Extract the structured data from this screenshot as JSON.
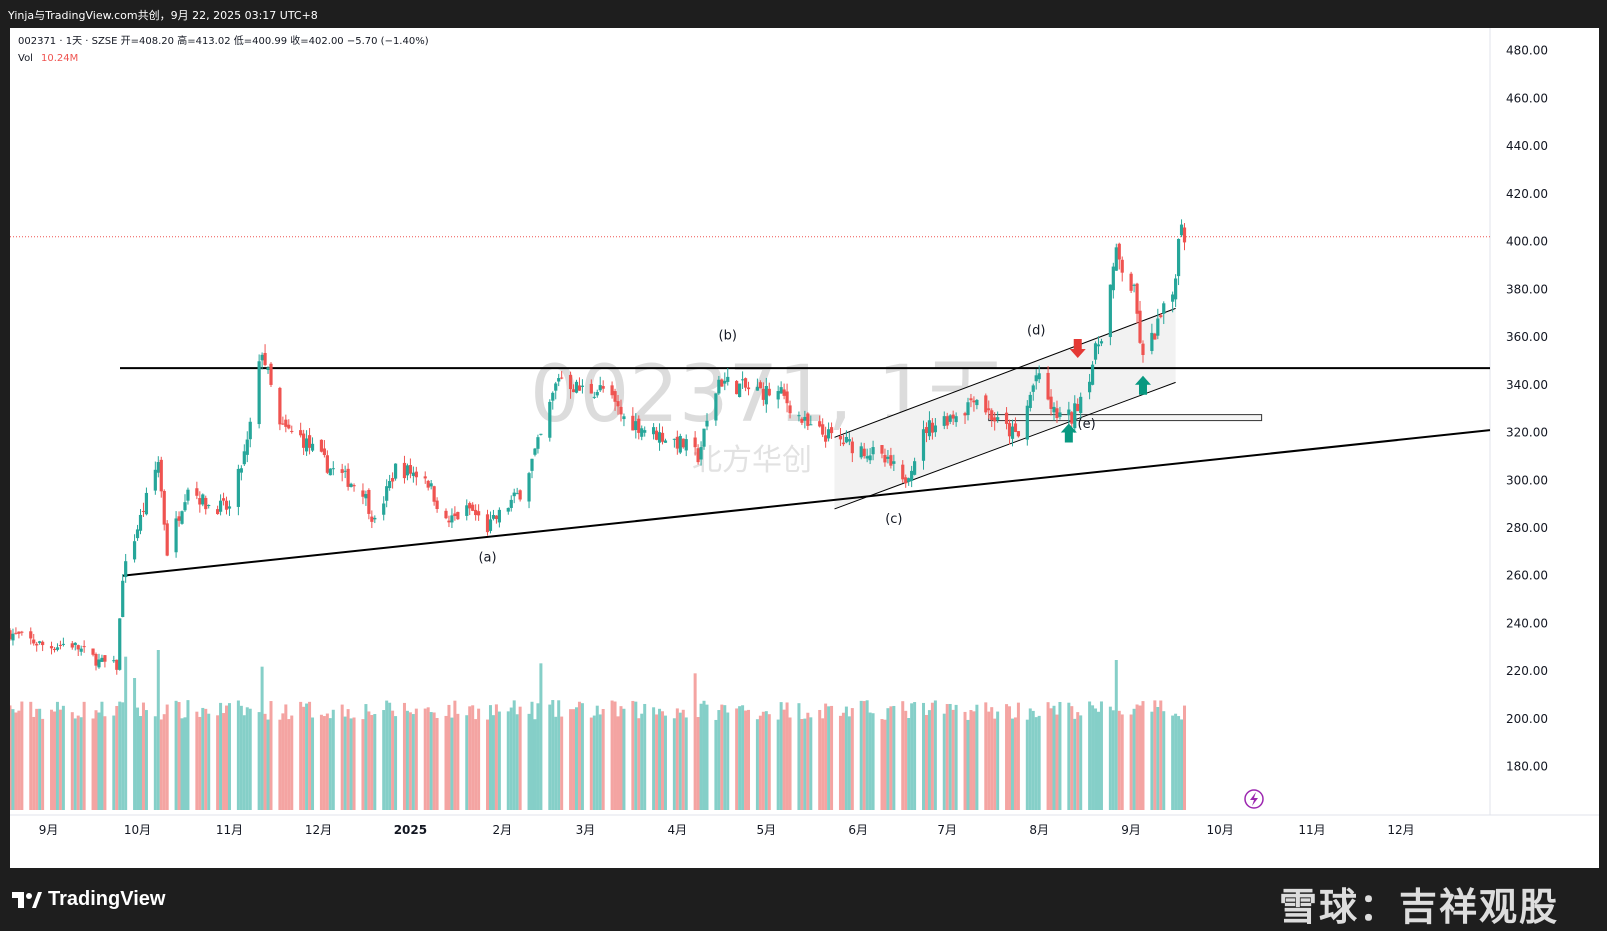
{
  "header": {
    "title_line": "Yinja与TradingView.com共创，9月 22, 2025 03:17 UTC+8"
  },
  "legend": {
    "symbol_line": "002371 · 1天 · SZSE  开=408.20  高=413.02  低=400.99  收=402.00  −5.70 (−1.40%)",
    "vol_label": "Vol",
    "vol_value": "10.24M"
  },
  "watermark": {
    "symbol": "002371, 1天",
    "name": "北方华创"
  },
  "footer": {
    "brand": "TradingView",
    "source_mark": "雪球：吉祥观股"
  },
  "colors": {
    "up": "#26a69a",
    "down": "#ef5350",
    "up_vol": "#85cfc8",
    "down_vol": "#f4a4a2",
    "line": "#000000",
    "price_line": "#ef5350",
    "frame": "#1e1e1e"
  },
  "chart_data": {
    "type": "candlestick",
    "price_axis": {
      "range": [
        156,
        488
      ],
      "ticks": [
        "480.00",
        "460.00",
        "440.00",
        "420.00",
        "400.00",
        "380.00",
        "360.00",
        "340.00",
        "320.00",
        "300.00",
        "280.00",
        "260.00",
        "240.00",
        "220.00",
        "200.00",
        "180.00"
      ]
    },
    "time_axis": {
      "range": [
        "2024-08-19",
        "2025-12-31"
      ],
      "labels": [
        {
          "text": "9月",
          "date": "2024-09-01"
        },
        {
          "text": "10月",
          "date": "2024-10-01"
        },
        {
          "text": "11月",
          "date": "2024-11-01"
        },
        {
          "text": "12月",
          "date": "2024-12-01"
        },
        {
          "text": "2025",
          "date": "2025-01-01"
        },
        {
          "text": "2月",
          "date": "2025-02-01"
        },
        {
          "text": "3月",
          "date": "2025-03-01"
        },
        {
          "text": "4月",
          "date": "2025-04-01"
        },
        {
          "text": "5月",
          "date": "2025-05-01"
        },
        {
          "text": "6月",
          "date": "2025-06-01"
        },
        {
          "text": "7月",
          "date": "2025-07-01"
        },
        {
          "text": "8月",
          "date": "2025-08-01"
        },
        {
          "text": "9月",
          "date": "2025-09-01"
        },
        {
          "text": "10月",
          "date": "2025-10-01"
        },
        {
          "text": "11月",
          "date": "2025-11-01"
        },
        {
          "text": "12月",
          "date": "2025-12-01"
        }
      ]
    },
    "last_price": 402.0,
    "horizontal_line": 347,
    "support_line": [
      {
        "date": "2024-09-26",
        "price": 260
      },
      {
        "date": "2025-12-31",
        "price": 321
      }
    ],
    "channel_upper": [
      {
        "date": "2025-05-24",
        "price": 318
      },
      {
        "date": "2025-09-16",
        "price": 372
      }
    ],
    "channel_lower": [
      {
        "date": "2025-05-24",
        "price": 288
      },
      {
        "date": "2025-09-16",
        "price": 341
      }
    ],
    "zone_rect": {
      "from": "2025-07-15",
      "to": "2025-10-15",
      "top": 327.5,
      "bottom": 325
    },
    "annotations": [
      {
        "text": "(a)",
        "date": "2025-01-27",
        "price": 266
      },
      {
        "text": "(b)",
        "date": "2025-04-18",
        "price": 359
      },
      {
        "text": "(c)",
        "date": "2025-06-13",
        "price": 282
      },
      {
        "text": "(d)",
        "date": "2025-07-31",
        "price": 361
      },
      {
        "text": "(e)",
        "date": "2025-08-17",
        "price": 322
      }
    ],
    "arrows": [
      {
        "dir": "down",
        "date": "2025-08-14",
        "price": 355
      },
      {
        "dir": "up",
        "date": "2025-08-11",
        "price": 320
      },
      {
        "dir": "up",
        "date": "2025-09-05",
        "price": 340
      }
    ],
    "anchors": [
      {
        "date": "2024-08-19",
        "close": 236
      },
      {
        "date": "2024-09-01",
        "close": 230
      },
      {
        "date": "2024-09-08",
        "close": 232
      },
      {
        "date": "2024-09-18",
        "close": 224
      },
      {
        "date": "2024-09-24",
        "close": 222
      },
      {
        "date": "2024-09-26",
        "close": 260
      },
      {
        "date": "2024-10-08",
        "close": 308
      },
      {
        "date": "2024-10-11",
        "close": 270
      },
      {
        "date": "2024-10-18",
        "close": 298
      },
      {
        "date": "2024-10-24",
        "close": 290
      },
      {
        "date": "2024-11-01",
        "close": 288
      },
      {
        "date": "2024-11-07",
        "close": 315
      },
      {
        "date": "2024-11-12",
        "close": 355
      },
      {
        "date": "2024-11-18",
        "close": 322
      },
      {
        "date": "2024-11-25",
        "close": 318
      },
      {
        "date": "2024-12-05",
        "close": 305
      },
      {
        "date": "2024-12-16",
        "close": 296
      },
      {
        "date": "2024-12-20",
        "close": 282
      },
      {
        "date": "2024-12-27",
        "close": 305
      },
      {
        "date": "2025-01-06",
        "close": 302
      },
      {
        "date": "2025-01-13",
        "close": 282
      },
      {
        "date": "2025-01-21",
        "close": 288
      },
      {
        "date": "2025-01-27",
        "close": 280
      },
      {
        "date": "2025-02-07",
        "close": 295
      },
      {
        "date": "2025-02-14",
        "close": 318
      },
      {
        "date": "2025-02-20",
        "close": 344
      },
      {
        "date": "2025-02-27",
        "close": 338
      },
      {
        "date": "2025-03-07",
        "close": 338
      },
      {
        "date": "2025-03-14",
        "close": 326
      },
      {
        "date": "2025-03-24",
        "close": 320
      },
      {
        "date": "2025-04-03",
        "close": 315
      },
      {
        "date": "2025-04-08",
        "close": 310
      },
      {
        "date": "2025-04-15",
        "close": 342
      },
      {
        "date": "2025-04-25",
        "close": 338
      },
      {
        "date": "2025-05-06",
        "close": 336
      },
      {
        "date": "2025-05-15",
        "close": 322
      },
      {
        "date": "2025-05-27",
        "close": 316
      },
      {
        "date": "2025-06-05",
        "close": 312
      },
      {
        "date": "2025-06-13",
        "close": 305
      },
      {
        "date": "2025-06-16",
        "close": 298
      },
      {
        "date": "2025-06-24",
        "close": 322
      },
      {
        "date": "2025-07-07",
        "close": 330
      },
      {
        "date": "2025-07-10",
        "close": 336
      },
      {
        "date": "2025-07-18",
        "close": 324
      },
      {
        "date": "2025-07-25",
        "close": 318
      },
      {
        "date": "2025-07-31",
        "close": 344
      },
      {
        "date": "2025-08-06",
        "close": 328
      },
      {
        "date": "2025-08-12",
        "close": 326
      },
      {
        "date": "2025-08-18",
        "close": 345
      },
      {
        "date": "2025-08-22",
        "close": 362
      },
      {
        "date": "2025-08-27",
        "close": 394
      },
      {
        "date": "2025-09-02",
        "close": 378
      },
      {
        "date": "2025-09-05",
        "close": 350
      },
      {
        "date": "2025-09-10",
        "close": 365
      },
      {
        "date": "2025-09-15",
        "close": 378
      },
      {
        "date": "2025-09-18",
        "close": 410
      },
      {
        "date": "2025-09-19",
        "close": 402
      }
    ],
    "volume_axis": {
      "max": 240
    },
    "volume_spikes": [
      {
        "date": "2024-09-27",
        "value": 230
      },
      {
        "date": "2024-09-30",
        "value": 198
      },
      {
        "date": "2024-10-08",
        "value": 240
      },
      {
        "date": "2024-11-12",
        "value": 215
      },
      {
        "date": "2025-02-14",
        "value": 220
      },
      {
        "date": "2025-04-07",
        "value": 205
      },
      {
        "date": "2025-08-27",
        "value": 225
      }
    ]
  }
}
